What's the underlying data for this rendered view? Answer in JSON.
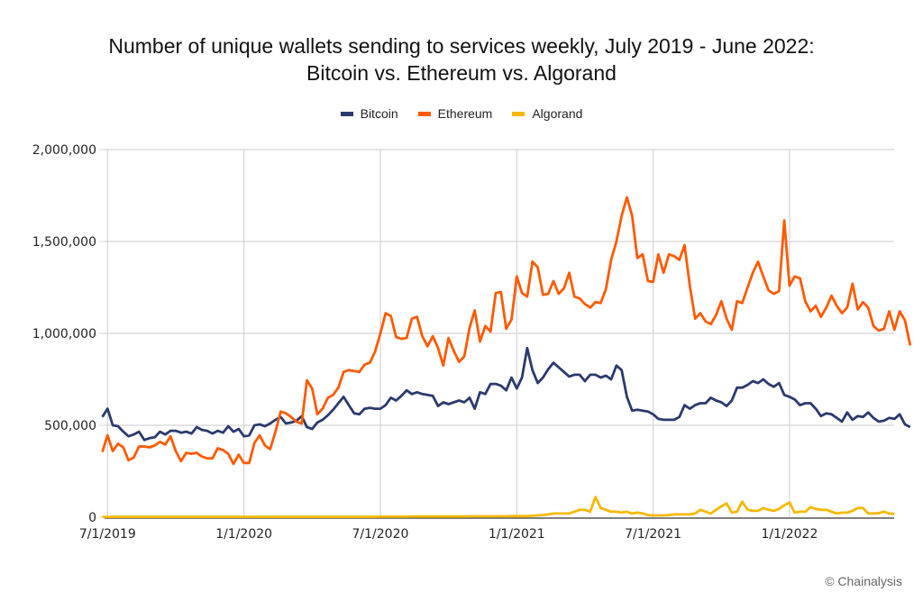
{
  "chart_data": {
    "type": "line",
    "title": "Number of unique wallets sending to services weekly, July 2019 - June 2022:",
    "subtitle": "Bitcoin vs. Ethereum vs. Algorand",
    "xlabel": "",
    "ylabel": "",
    "ylim": [
      0,
      2000000
    ],
    "yticks": [
      0,
      500000,
      1000000,
      1500000,
      2000000
    ],
    "ytick_labels": [
      "0",
      "500,000",
      "1,000,000",
      "1,500,000",
      "2,000,000"
    ],
    "xticks_week_index": [
      1,
      27,
      53,
      79,
      105,
      131
    ],
    "xtick_labels": [
      "7/1/2019",
      "1/1/2020",
      "7/1/2020",
      "1/1/2021",
      "7/1/2021",
      "1/1/2022"
    ],
    "x_unit": "week index (0 = week of 6/24/2019)",
    "grid": true,
    "legend_position": "top-center",
    "series": [
      {
        "name": "Bitcoin",
        "color": "#2b3a6e",
        "values": [
          545000,
          590000,
          500000,
          495000,
          465000,
          440000,
          450000,
          465000,
          420000,
          430000,
          435000,
          465000,
          450000,
          470000,
          470000,
          460000,
          465000,
          455000,
          490000,
          475000,
          470000,
          455000,
          470000,
          460000,
          495000,
          465000,
          480000,
          440000,
          445000,
          500000,
          505000,
          495000,
          510000,
          530000,
          545000,
          510000,
          515000,
          525000,
          550000,
          490000,
          480000,
          515000,
          530000,
          555000,
          585000,
          620000,
          655000,
          610000,
          565000,
          560000,
          590000,
          595000,
          590000,
          590000,
          610000,
          650000,
          635000,
          660000,
          690000,
          670000,
          680000,
          670000,
          665000,
          660000,
          605000,
          625000,
          615000,
          625000,
          635000,
          625000,
          650000,
          590000,
          680000,
          670000,
          725000,
          725000,
          715000,
          690000,
          760000,
          700000,
          760000,
          920000,
          800000,
          730000,
          760000,
          805000,
          840000,
          815000,
          790000,
          765000,
          775000,
          775000,
          740000,
          775000,
          775000,
          760000,
          770000,
          750000,
          825000,
          800000,
          655000,
          580000,
          585000,
          580000,
          575000,
          560000,
          535000,
          530000,
          530000,
          530000,
          545000,
          610000,
          590000,
          610000,
          620000,
          620000,
          650000,
          635000,
          625000,
          605000,
          635000,
          705000,
          705000,
          720000,
          740000,
          730000,
          750000,
          725000,
          710000,
          730000,
          665000,
          655000,
          640000,
          610000,
          620000,
          620000,
          590000,
          550000,
          565000,
          560000,
          540000,
          520000,
          570000,
          530000,
          550000,
          545000,
          570000,
          540000,
          520000,
          525000,
          540000,
          535000,
          560000,
          505000,
          490000
        ]
      },
      {
        "name": "Ethereum",
        "color": "#ff5a00",
        "values": [
          355000,
          445000,
          360000,
          400000,
          380000,
          310000,
          325000,
          385000,
          385000,
          380000,
          390000,
          410000,
          395000,
          440000,
          360000,
          305000,
          350000,
          345000,
          350000,
          330000,
          320000,
          320000,
          375000,
          365000,
          345000,
          290000,
          340000,
          295000,
          295000,
          405000,
          445000,
          390000,
          370000,
          465000,
          575000,
          565000,
          545000,
          520000,
          510000,
          745000,
          700000,
          560000,
          590000,
          650000,
          665000,
          705000,
          790000,
          800000,
          795000,
          790000,
          830000,
          840000,
          900000,
          1000000,
          1110000,
          1095000,
          980000,
          970000,
          975000,
          1080000,
          1090000,
          985000,
          930000,
          985000,
          920000,
          825000,
          975000,
          905000,
          845000,
          875000,
          1030000,
          1125000,
          955000,
          1040000,
          1010000,
          1220000,
          1225000,
          1025000,
          1075000,
          1310000,
          1220000,
          1200000,
          1390000,
          1360000,
          1210000,
          1215000,
          1285000,
          1215000,
          1245000,
          1330000,
          1200000,
          1190000,
          1160000,
          1140000,
          1170000,
          1165000,
          1240000,
          1400000,
          1500000,
          1640000,
          1740000,
          1640000,
          1410000,
          1430000,
          1285000,
          1280000,
          1430000,
          1330000,
          1430000,
          1420000,
          1400000,
          1480000,
          1260000,
          1080000,
          1110000,
          1065000,
          1050000,
          1100000,
          1175000,
          1080000,
          1020000,
          1175000,
          1165000,
          1250000,
          1330000,
          1390000,
          1310000,
          1235000,
          1215000,
          1230000,
          1615000,
          1260000,
          1310000,
          1300000,
          1175000,
          1120000,
          1150000,
          1090000,
          1140000,
          1205000,
          1150000,
          1110000,
          1140000,
          1270000,
          1130000,
          1170000,
          1140000,
          1040000,
          1015000,
          1025000,
          1120000,
          1020000,
          1120000,
          1070000,
          935000
        ]
      },
      {
        "name": "Algorand",
        "color": "#f6b800",
        "values": [
          2000,
          2000,
          2000,
          2000,
          2000,
          2000,
          2000,
          2000,
          2000,
          2000,
          2000,
          2000,
          2000,
          2000,
          2000,
          2000,
          2000,
          2000,
          2000,
          2000,
          2000,
          2000,
          2000,
          2000,
          2000,
          2000,
          2000,
          2000,
          2000,
          2000,
          2000,
          2000,
          2000,
          2000,
          2000,
          2000,
          2000,
          2000,
          2000,
          2000,
          2000,
          2000,
          2000,
          2000,
          2000,
          2000,
          2000,
          2000,
          2000,
          2000,
          2000,
          2000,
          2000,
          3000,
          3000,
          3000,
          3000,
          3000,
          3000,
          4000,
          4000,
          4000,
          4000,
          4000,
          4000,
          4000,
          4000,
          4000,
          4000,
          4000,
          5000,
          5000,
          5000,
          5000,
          5000,
          5000,
          5000,
          5000,
          6000,
          6000,
          6000,
          6000,
          8000,
          10000,
          12000,
          15000,
          20000,
          20000,
          20000,
          20000,
          30000,
          40000,
          40000,
          30000,
          110000,
          50000,
          40000,
          30000,
          30000,
          25000,
          30000,
          20000,
          25000,
          20000,
          12000,
          10000,
          10000,
          10000,
          12000,
          15000,
          15000,
          15000,
          15000,
          20000,
          40000,
          30000,
          20000,
          40000,
          60000,
          75000,
          25000,
          30000,
          85000,
          40000,
          35000,
          35000,
          50000,
          40000,
          35000,
          45000,
          65000,
          80000,
          25000,
          30000,
          30000,
          55000,
          45000,
          40000,
          40000,
          30000,
          20000,
          25000,
          25000,
          35000,
          50000,
          50000,
          20000,
          20000,
          22000,
          30000,
          20000,
          18000
        ]
      }
    ]
  },
  "legend": {
    "items": [
      {
        "label": "Bitcoin",
        "color": "#2b3a6e"
      },
      {
        "label": "Ethereum",
        "color": "#ff5a00"
      },
      {
        "label": "Algorand",
        "color": "#f6b800"
      }
    ]
  },
  "credit": "© Chainalysis"
}
